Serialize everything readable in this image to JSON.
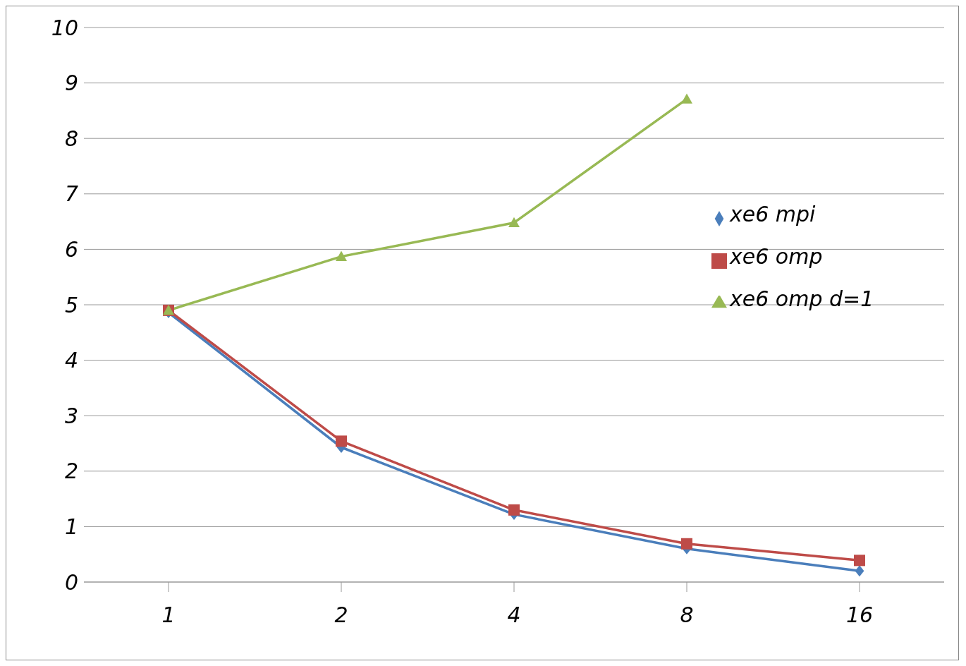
{
  "chart_data": {
    "type": "line",
    "categories": [
      "1",
      "2",
      "4",
      "8",
      "16"
    ],
    "series": [
      {
        "name": "xe6 mpi",
        "color": "#4a7ebb",
        "marker": "diamond",
        "values": [
          4.86,
          2.43,
          1.22,
          0.6,
          0.2
        ]
      },
      {
        "name": "xe6 omp",
        "color": "#be4b48",
        "marker": "square",
        "values": [
          4.9,
          2.54,
          1.3,
          0.69,
          0.39
        ]
      },
      {
        "name": "xe6 omp d=1",
        "color": "#98b954",
        "marker": "triangle",
        "values": [
          4.9,
          5.87,
          6.48,
          8.71,
          null
        ]
      }
    ],
    "ylim": [
      0,
      10
    ],
    "yticks": [
      0,
      1,
      2,
      3,
      4,
      5,
      6,
      7,
      8,
      9,
      10
    ],
    "grid": "y",
    "legend": "right"
  }
}
